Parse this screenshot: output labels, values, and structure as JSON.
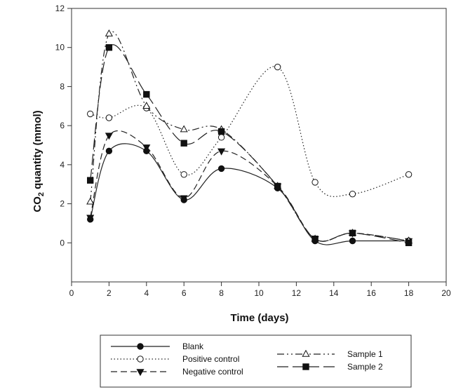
{
  "chart_data": {
    "type": "line",
    "title": "",
    "xlabel": "Time (days)",
    "ylabel_main": "CO",
    "ylabel_sub": "2",
    "ylabel_rest": " quantity (mmol)",
    "xlim": [
      0,
      20
    ],
    "ylim": [
      -2,
      12
    ],
    "xticks": [
      0,
      2,
      4,
      6,
      8,
      10,
      12,
      14,
      16,
      18,
      20
    ],
    "yticks": [
      0,
      2,
      4,
      6,
      8,
      10,
      12
    ],
    "grid": false,
    "legend_position": "bottom-center",
    "series": [
      {
        "name": "Blank",
        "marker": "filled-circle",
        "dash": "solid",
        "x": [
          1,
          2,
          4,
          6,
          8,
          11,
          13,
          15,
          18
        ],
        "y": [
          1.2,
          4.7,
          4.7,
          2.2,
          3.8,
          2.8,
          0.1,
          0.1,
          0.1
        ]
      },
      {
        "name": "Positive control",
        "marker": "open-circle",
        "dash": "dotted",
        "x": [
          1,
          2,
          4,
          6,
          8,
          11,
          13,
          15,
          18
        ],
        "y": [
          6.6,
          6.4,
          6.9,
          3.5,
          5.4,
          9.0,
          3.1,
          2.5,
          3.5
        ]
      },
      {
        "name": "Negative control",
        "marker": "filled-triangle-down",
        "dash": "dashed",
        "x": [
          1,
          2,
          4,
          6,
          8,
          11,
          13,
          15,
          18
        ],
        "y": [
          1.3,
          5.5,
          4.9,
          2.3,
          4.7,
          2.9,
          0.2,
          0.5,
          0.1
        ]
      },
      {
        "name": "Sample 1",
        "marker": "open-triangle-up",
        "dash": "dash-dot-dot",
        "x": [
          1,
          2,
          4,
          6,
          8,
          11,
          13,
          15,
          18
        ],
        "y": [
          2.1,
          10.7,
          7.0,
          5.8,
          5.8,
          2.9,
          0.2,
          0.5,
          0.1
        ]
      },
      {
        "name": "Sample 2",
        "marker": "filled-square",
        "dash": "long-dash",
        "x": [
          1,
          2,
          4,
          6,
          8,
          11,
          13,
          15,
          18
        ],
        "y": [
          3.2,
          10.0,
          7.6,
          5.1,
          5.7,
          2.9,
          0.2,
          0.5,
          0.0
        ]
      }
    ]
  }
}
